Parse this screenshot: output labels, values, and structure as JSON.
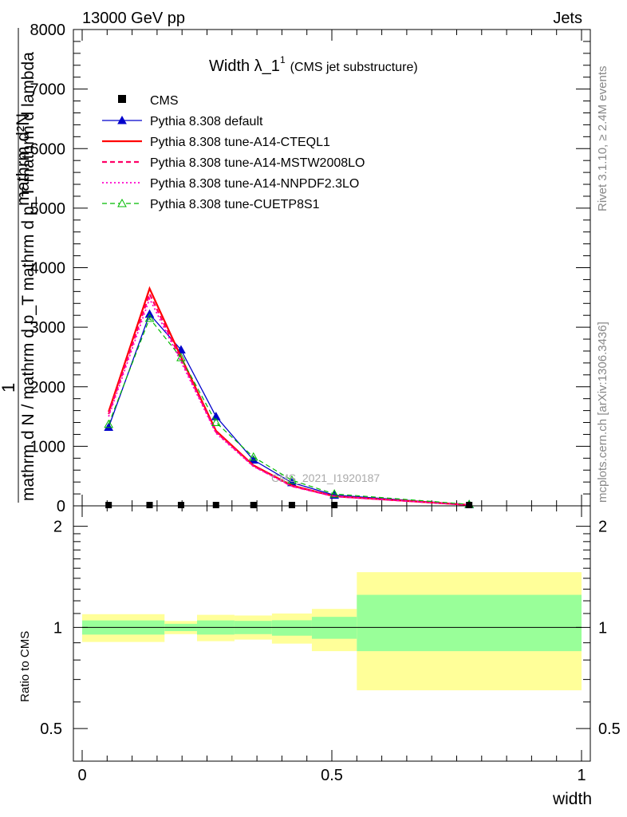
{
  "header": {
    "left": "13000 GeV pp",
    "right": "Jets"
  },
  "side_text": {
    "top": "Rivet 3.1.10, ≥ 2.4M events",
    "bottom": "mcplots.cern.ch [arXiv:1306.3436]"
  },
  "watermark": "CMS_2021_I1920187",
  "colors": {
    "cms": "#000000",
    "default": "#0000cc",
    "a14_cteql1": "#ff0000",
    "a14_mstw": "#ff0066",
    "a14_nnpdf": "#ff00cc",
    "cuetp8s1": "#00bb00",
    "band_inner": "#99ff99",
    "band_outer": "#ffff99"
  },
  "chart_data": [
    {
      "type": "line",
      "title": "Width λ_1",
      "title_sup": "1",
      "subtitle": "(CMS jet substructure)",
      "ylabel_top": "mathrm d²N",
      "ylabel_bottom": "mathrm d N / mathrm d p_T mathrm d p_T mathrm d lambda",
      "ylabel_lead": "1",
      "xlim": [
        0,
        1
      ],
      "ylim": [
        0,
        8000
      ],
      "yticks": [
        0,
        1000,
        2000,
        3000,
        4000,
        5000,
        6000,
        7000,
        8000
      ],
      "ytick_labels": [
        "0",
        "1000",
        "2000",
        "3000",
        "4000",
        "5000",
        "6000",
        "7000",
        "8000"
      ],
      "legend_position": "top-left",
      "cms": {
        "name": "CMS",
        "x": [
          0.053,
          0.135,
          0.198,
          0.268,
          0.343,
          0.42,
          0.505,
          0.775
        ],
        "y": [
          0,
          0,
          0,
          0,
          0,
          0,
          0,
          0
        ]
      },
      "series": [
        {
          "key": "default",
          "name": "Pythia 8.308 default",
          "style": "solid",
          "marker": "triangle-filled",
          "x": [
            0.053,
            0.135,
            0.198,
            0.268,
            0.343,
            0.42,
            0.505,
            0.775
          ],
          "y": [
            1320,
            3220,
            2620,
            1500,
            770,
            390,
            180,
            20
          ]
        },
        {
          "key": "a14_cteql1",
          "name": "Pythia 8.308 tune-A14-CTEQL1",
          "style": "solid",
          "marker": "none",
          "x": [
            0.053,
            0.135,
            0.198,
            0.268,
            0.343,
            0.42,
            0.505,
            0.775
          ],
          "y": [
            1580,
            3650,
            2500,
            1260,
            680,
            340,
            160,
            15
          ]
        },
        {
          "key": "a14_mstw",
          "name": "Pythia 8.308 tune-A14-MSTW2008LO",
          "style": "dashed",
          "marker": "none",
          "x": [
            0.053,
            0.135,
            0.198,
            0.268,
            0.343,
            0.42,
            0.505,
            0.775
          ],
          "y": [
            1540,
            3560,
            2460,
            1240,
            670,
            330,
            160,
            15
          ]
        },
        {
          "key": "a14_nnpdf",
          "name": "Pythia 8.308 tune-A14-NNPDF2.3LO",
          "style": "dotted",
          "marker": "none",
          "x": [
            0.053,
            0.135,
            0.198,
            0.268,
            0.343,
            0.42,
            0.505,
            0.775
          ],
          "y": [
            1500,
            3480,
            2420,
            1220,
            660,
            330,
            155,
            15
          ]
        },
        {
          "key": "cuetp8s1",
          "name": "Pythia 8.308 tune-CUETP8S1",
          "style": "dashed",
          "marker": "triangle-open",
          "x": [
            0.053,
            0.135,
            0.198,
            0.268,
            0.343,
            0.42,
            0.505,
            0.775
          ],
          "y": [
            1370,
            3150,
            2490,
            1400,
            820,
            430,
            200,
            25
          ]
        }
      ]
    },
    {
      "type": "area",
      "ylabel": "Ratio to CMS",
      "xlabel": "width",
      "log_y": true,
      "ylim": [
        0.4,
        2.3
      ],
      "yticks": [
        0.5,
        1,
        2
      ],
      "ytick_labels": [
        "0.5",
        "1",
        "2"
      ],
      "xticks": [
        0,
        0.5,
        1
      ],
      "xtick_labels": [
        "0",
        "0.5",
        "1"
      ],
      "bins": [
        {
          "x_lo": 0.0,
          "x_hi": 0.165,
          "inner": [
            0.952,
            1.049
          ],
          "outer": [
            0.905,
            1.095
          ]
        },
        {
          "x_lo": 0.165,
          "x_hi": 0.23,
          "inner": [
            0.975,
            1.025
          ],
          "outer": [
            0.955,
            1.045
          ]
        },
        {
          "x_lo": 0.23,
          "x_hi": 0.305,
          "inner": [
            0.952,
            1.049
          ],
          "outer": [
            0.91,
            1.09
          ]
        },
        {
          "x_lo": 0.305,
          "x_hi": 0.38,
          "inner": [
            0.955,
            1.046
          ],
          "outer": [
            0.92,
            1.085
          ]
        },
        {
          "x_lo": 0.38,
          "x_hi": 0.46,
          "inner": [
            0.945,
            1.05
          ],
          "outer": [
            0.895,
            1.1
          ]
        },
        {
          "x_lo": 0.46,
          "x_hi": 0.55,
          "inner": [
            0.925,
            1.075
          ],
          "outer": [
            0.85,
            1.135
          ]
        },
        {
          "x_lo": 0.55,
          "x_hi": 1.0,
          "inner": [
            0.85,
            1.25
          ],
          "outer": [
            0.65,
            1.46
          ]
        }
      ]
    }
  ]
}
